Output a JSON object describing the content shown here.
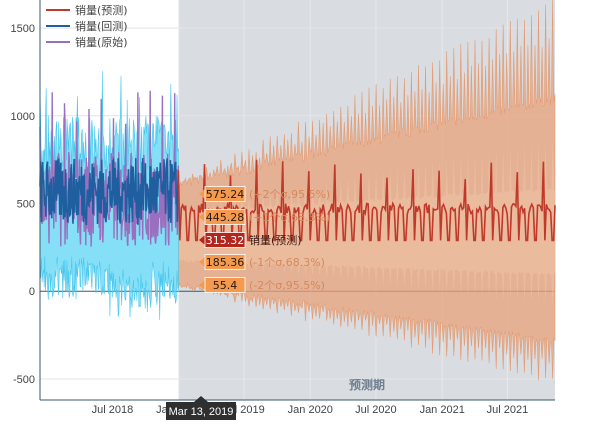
{
  "chart_data": {
    "type": "line",
    "title": "",
    "xlabel": "",
    "ylabel": "",
    "x_range": [
      "2017-12-12",
      "2021-11-10"
    ],
    "ylim": [
      -620,
      1660
    ],
    "forecast_start": "2018-12-31",
    "forecast_end": "2021-11-10",
    "forecast_label": "预测期",
    "hover_date": "Mar 13, 2019",
    "x_ticks": [
      {
        "date": "2018-07-01",
        "label": "Jul 2018"
      },
      {
        "date": "2019-01-01",
        "label": "Jan 2019"
      },
      {
        "date": "2019-07-01",
        "label": "Jul 2019"
      },
      {
        "date": "2020-01-01",
        "label": "Jan 2020"
      },
      {
        "date": "2020-07-01",
        "label": "Jul 2020"
      },
      {
        "date": "2021-01-01",
        "label": "Jan 2021"
      },
      {
        "date": "2021-07-01",
        "label": "Jul 2021"
      }
    ],
    "y_ticks": [
      -500,
      0,
      500,
      1000,
      1500
    ],
    "legend": [
      {
        "name": "销量(预测)",
        "color": "#c0392b"
      },
      {
        "name": "销量(回测)",
        "color": "#1f5fa0"
      },
      {
        "name": "销量(原始)",
        "color": "#9b6fbf"
      }
    ],
    "series": [
      {
        "name": "销量(原始)",
        "period": [
          "2017-12-12",
          "2018-12-31"
        ],
        "typical_range": [
          250,
          800
        ],
        "peak": 1150,
        "color": "#9b6fbf"
      },
      {
        "name": "销量(回测)",
        "period": [
          "2017-12-12",
          "2018-12-31"
        ],
        "typical_range": [
          280,
          760
        ],
        "color": "#1f5fa0"
      },
      {
        "name": "销量(预测)",
        "period": [
          "2018-12-31",
          "2021-11-10"
        ],
        "low": 290,
        "high": 500,
        "peak": 750,
        "color": "#c0392b"
      }
    ],
    "backtest_band": {
      "period": [
        "2017-12-12",
        "2018-12-31"
      ],
      "upper_peak": 1280,
      "lower_min": -220,
      "color": "#5bd4f4"
    },
    "forecast_band": {
      "period": [
        "2018-12-31",
        "2021-11-10"
      ],
      "upper_start": 575,
      "upper_end": 1500,
      "lower_start": 55,
      "lower_end": -500,
      "color": "#e8a27a"
    },
    "tooltip": [
      {
        "value": "575.24",
        "label": "(+2个σ,95.5%)",
        "y": 575.24,
        "box_color": "#f39a4f",
        "label_color": "#d5895c"
      },
      {
        "value": "445.28",
        "label": "(+1个σ,68.3%)",
        "y": 445.28,
        "box_color": "#f39a4f",
        "label_color": "#d5895c"
      },
      {
        "value": "315.32",
        "label": "销量(预测)",
        "y": 315.32,
        "box_color": "#b3261e",
        "label_color": "#ffffff"
      },
      {
        "value": "185.36",
        "label": "(-1个σ,68.3%)",
        "y": 185.36,
        "box_color": "#f39a4f",
        "label_color": "#d5895c"
      },
      {
        "value": "55.4",
        "label": "(-2个σ,95.5%)",
        "y": 55.4,
        "box_color": "#f39a4f",
        "label_color": "#d5895c"
      }
    ]
  }
}
